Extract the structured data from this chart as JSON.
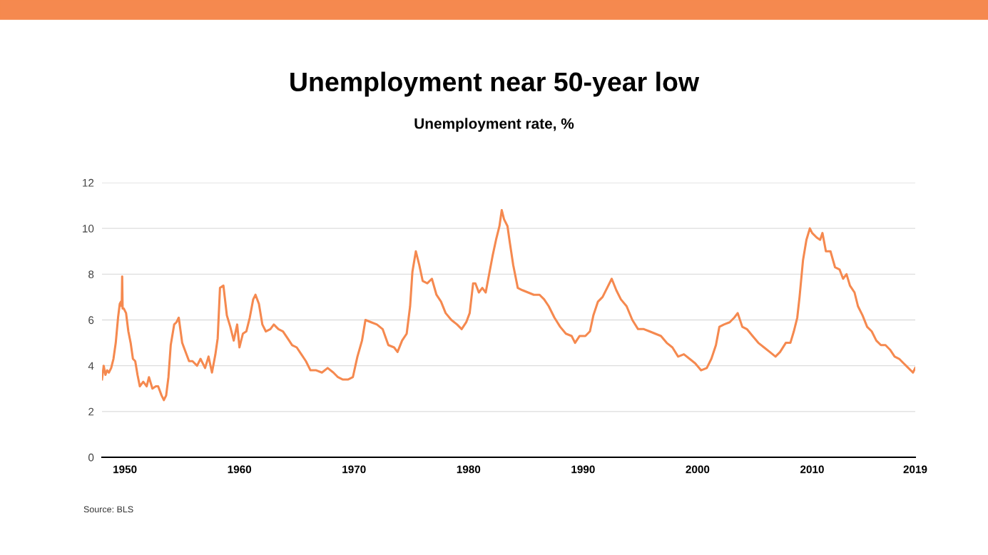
{
  "chart_data": {
    "type": "line",
    "title": "Unemployment near 50-year low",
    "subtitle": "Unemployment rate, %",
    "annotations": [
      "Source: BLS"
    ],
    "xlim": [
      1948,
      2019
    ],
    "xticks": [
      1950,
      1960,
      1970,
      1980,
      1990,
      2000,
      2010,
      2019
    ],
    "ylim": [
      0,
      12
    ],
    "yticks": [
      0,
      2,
      4,
      6,
      8,
      10,
      12
    ],
    "grid": "y",
    "legend": false,
    "marker": "none",
    "line_style": "solid",
    "series": [
      {
        "color": "#f5894f",
        "x": [
          1948.0,
          1948.15,
          1948.3,
          1948.45,
          1948.6,
          1948.8,
          1949.0,
          1949.2,
          1949.4,
          1949.55,
          1949.65,
          1949.72,
          1949.76,
          1949.8,
          1949.9,
          1950.1,
          1950.3,
          1950.5,
          1950.7,
          1950.9,
          1951.1,
          1951.3,
          1951.6,
          1951.9,
          1952.1,
          1952.4,
          1952.7,
          1952.9,
          1953.2,
          1953.4,
          1953.6,
          1953.8,
          1954.0,
          1954.3,
          1954.5,
          1954.7,
          1955.0,
          1955.3,
          1955.6,
          1955.9,
          1956.3,
          1956.6,
          1957.0,
          1957.3,
          1957.6,
          1957.9,
          1958.1,
          1958.3,
          1958.6,
          1958.9,
          1959.2,
          1959.5,
          1959.8,
          1960.0,
          1960.3,
          1960.6,
          1960.9,
          1961.2,
          1961.4,
          1961.7,
          1962.0,
          1962.3,
          1962.7,
          1963.0,
          1963.4,
          1963.8,
          1964.2,
          1964.6,
          1965.0,
          1965.4,
          1965.8,
          1966.2,
          1966.7,
          1967.2,
          1967.7,
          1968.2,
          1968.6,
          1969.0,
          1969.5,
          1969.9,
          1970.3,
          1970.7,
          1971.0,
          1971.5,
          1972.0,
          1972.5,
          1973.0,
          1973.5,
          1973.8,
          1974.2,
          1974.6,
          1974.9,
          1975.1,
          1975.4,
          1975.7,
          1976.0,
          1976.4,
          1976.8,
          1977.2,
          1977.6,
          1978.0,
          1978.5,
          1979.0,
          1979.4,
          1979.8,
          1980.1,
          1980.4,
          1980.6,
          1980.9,
          1981.2,
          1981.5,
          1981.8,
          1982.1,
          1982.4,
          1982.7,
          1982.9,
          1983.1,
          1983.4,
          1983.6,
          1983.9,
          1984.3,
          1984.7,
          1985.2,
          1985.7,
          1986.2,
          1986.6,
          1987.0,
          1987.5,
          1988.0,
          1988.5,
          1989.0,
          1989.3,
          1989.7,
          1990.2,
          1990.6,
          1990.9,
          1991.3,
          1991.7,
          1992.1,
          1992.5,
          1992.9,
          1993.3,
          1993.8,
          1994.3,
          1994.8,
          1995.3,
          1995.8,
          1996.3,
          1996.8,
          1997.3,
          1997.8,
          1998.3,
          1998.8,
          1999.3,
          1999.8,
          2000.3,
          2000.8,
          2001.2,
          2001.6,
          2001.9,
          2002.3,
          2002.8,
          2003.2,
          2003.5,
          2003.9,
          2004.3,
          2004.8,
          2005.3,
          2005.8,
          2006.3,
          2006.8,
          2007.2,
          2007.7,
          2008.1,
          2008.4,
          2008.7,
          2008.9,
          2009.2,
          2009.5,
          2009.8,
          2010.0,
          2010.4,
          2010.7,
          2010.9,
          2011.2,
          2011.6,
          2012.0,
          2012.4,
          2012.7,
          2013.0,
          2013.3,
          2013.7,
          2014.0,
          2014.4,
          2014.8,
          2015.2,
          2015.6,
          2016.0,
          2016.4,
          2016.8,
          2017.2,
          2017.6,
          2018.0,
          2018.4,
          2018.8,
          2019.0
        ],
        "values": [
          3.4,
          4.0,
          3.6,
          3.8,
          3.7,
          3.9,
          4.3,
          5.0,
          6.1,
          6.7,
          6.8,
          6.6,
          7.9,
          6.5,
          6.5,
          6.3,
          5.5,
          5.0,
          4.3,
          4.2,
          3.6,
          3.1,
          3.3,
          3.1,
          3.5,
          3.0,
          3.1,
          3.1,
          2.7,
          2.5,
          2.7,
          3.5,
          4.9,
          5.8,
          5.9,
          6.1,
          5.0,
          4.6,
          4.2,
          4.2,
          4.0,
          4.3,
          3.9,
          4.4,
          3.7,
          4.5,
          5.2,
          7.4,
          7.5,
          6.2,
          5.7,
          5.1,
          5.8,
          4.8,
          5.4,
          5.5,
          6.1,
          6.9,
          7.1,
          6.7,
          5.8,
          5.5,
          5.6,
          5.8,
          5.6,
          5.5,
          5.2,
          4.9,
          4.8,
          4.5,
          4.2,
          3.8,
          3.8,
          3.7,
          3.9,
          3.7,
          3.5,
          3.4,
          3.4,
          3.5,
          4.4,
          5.1,
          6.0,
          5.9,
          5.8,
          5.6,
          4.9,
          4.8,
          4.6,
          5.1,
          5.4,
          6.6,
          8.1,
          9.0,
          8.4,
          7.7,
          7.6,
          7.8,
          7.1,
          6.8,
          6.3,
          6.0,
          5.8,
          5.6,
          5.9,
          6.3,
          7.6,
          7.6,
          7.2,
          7.4,
          7.2,
          8.0,
          8.8,
          9.5,
          10.1,
          10.8,
          10.4,
          10.1,
          9.4,
          8.4,
          7.4,
          7.3,
          7.2,
          7.1,
          7.1,
          6.9,
          6.6,
          6.1,
          5.7,
          5.4,
          5.3,
          5.0,
          5.3,
          5.3,
          5.5,
          6.2,
          6.8,
          7.0,
          7.4,
          7.8,
          7.3,
          6.9,
          6.6,
          6.0,
          5.6,
          5.6,
          5.5,
          5.4,
          5.3,
          5.0,
          4.8,
          4.4,
          4.5,
          4.3,
          4.1,
          3.8,
          3.9,
          4.3,
          4.9,
          5.7,
          5.8,
          5.9,
          6.1,
          6.3,
          5.7,
          5.6,
          5.3,
          5.0,
          4.8,
          4.6,
          4.4,
          4.6,
          5.0,
          5.0,
          5.5,
          6.1,
          7.0,
          8.6,
          9.5,
          10.0,
          9.8,
          9.6,
          9.5,
          9.8,
          9.0,
          9.0,
          8.3,
          8.2,
          7.8,
          8.0,
          7.5,
          7.2,
          6.6,
          6.2,
          5.7,
          5.5,
          5.1,
          4.9,
          4.9,
          4.7,
          4.4,
          4.3,
          4.1,
          3.9,
          3.7,
          3.9
        ]
      }
    ]
  }
}
